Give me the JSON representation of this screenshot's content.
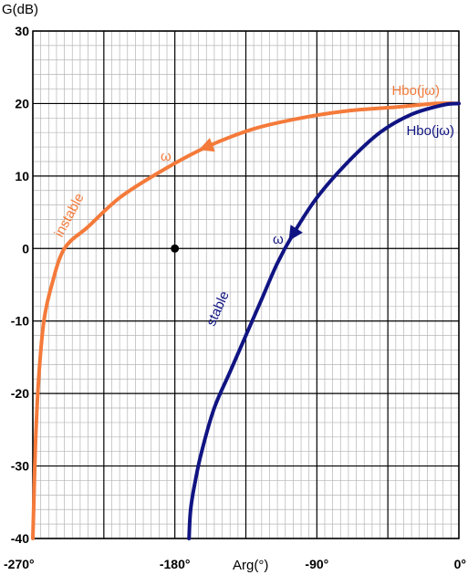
{
  "chart_data": {
    "type": "line",
    "title": "",
    "xlabel": "Arg(°)",
    "ylabel": "G(dB)",
    "xlim": [
      -270,
      0
    ],
    "ylim": [
      -40,
      30
    ],
    "grid": true,
    "x_ticks": [
      -270,
      -180,
      -90,
      0
    ],
    "x_tick_labels": [
      "-270°",
      "-180°",
      "-90°",
      "0°"
    ],
    "y_ticks": [
      -40,
      -30,
      -20,
      -10,
      0,
      10,
      20,
      30
    ],
    "y_tick_labels": [
      "-40",
      "-30",
      "-20",
      "-10",
      "0",
      "10",
      "20",
      "30"
    ],
    "critical_point": {
      "x": -180,
      "y": 0
    },
    "series": [
      {
        "name": "Hbo(jω)",
        "color": "#f47a3a",
        "annotation": "instable",
        "direction_label": "ω",
        "x": [
          0,
          -15,
          -40,
          -70,
          -100,
          -130,
          -160,
          -190,
          -215,
          -235,
          -250,
          -258,
          -263,
          -266,
          -268,
          -269,
          -270
        ],
        "y": [
          20,
          20,
          19.5,
          19,
          18,
          16.5,
          14,
          10.5,
          7,
          3,
          0,
          -5,
          -10,
          -17,
          -25,
          -32,
          -40
        ]
      },
      {
        "name": "Hbo(jω)",
        "color": "#101482",
        "annotation": "stable",
        "direction_label": "ω",
        "x": [
          0,
          -10,
          -30,
          -50,
          -70,
          -90,
          -105,
          -115,
          -125,
          -135,
          -145,
          -155,
          -163,
          -167,
          -170,
          -171
        ],
        "y": [
          20,
          19.8,
          18.5,
          16,
          12,
          7,
          2,
          -2,
          -7,
          -12,
          -17,
          -22,
          -28,
          -32,
          -36,
          -40
        ]
      }
    ]
  }
}
